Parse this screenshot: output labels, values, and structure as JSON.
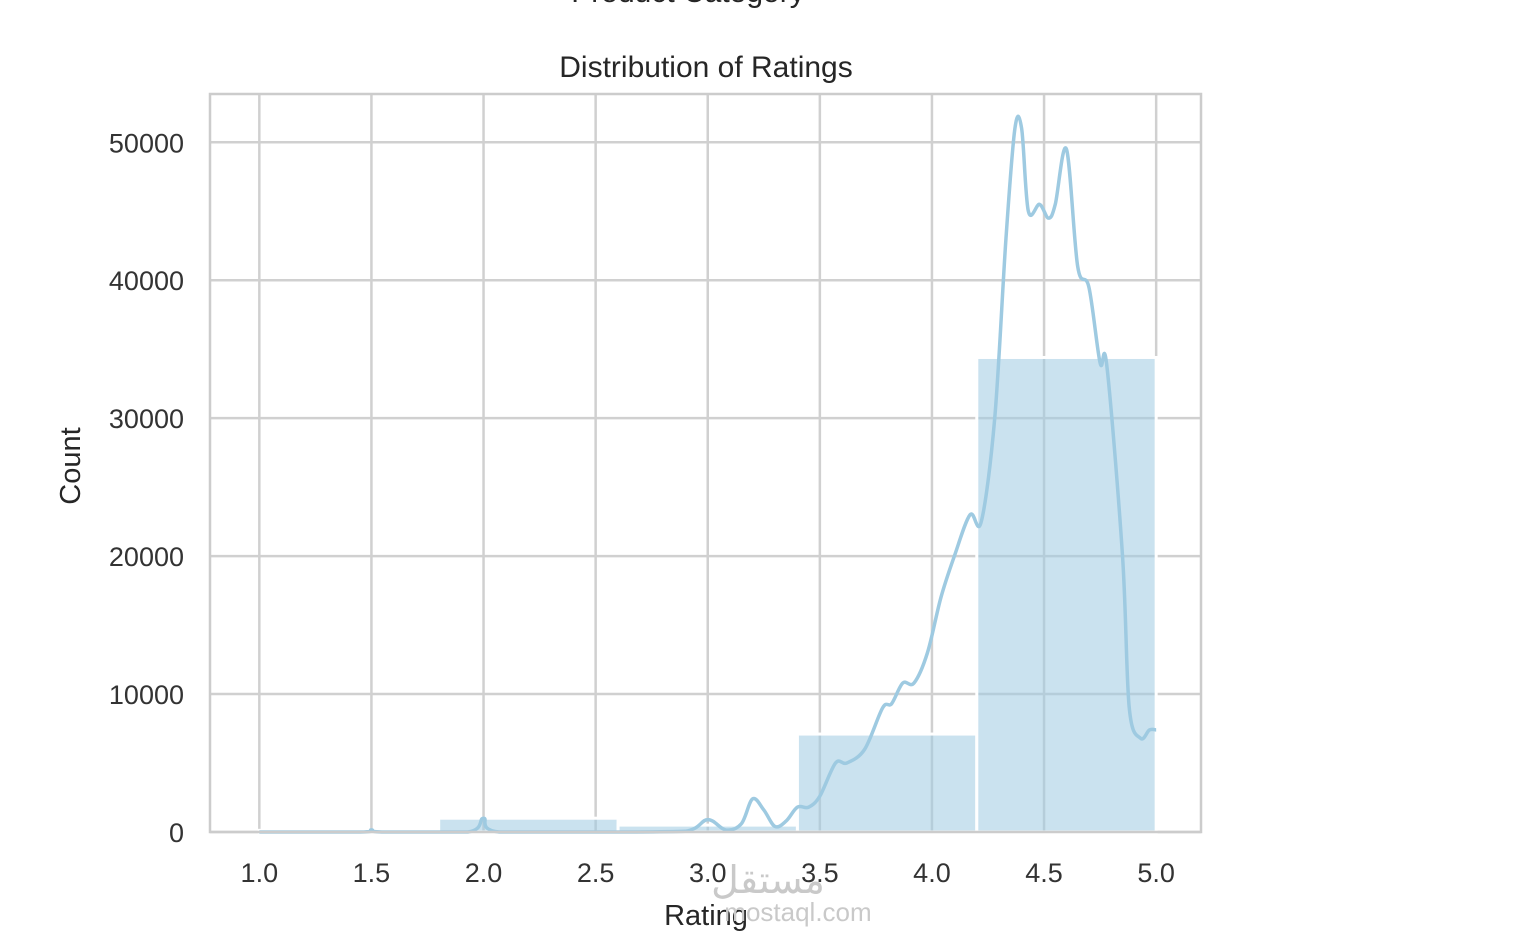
{
  "top_clipped_text": "Product Category",
  "watermark": {
    "arabic": "مستقل",
    "latin": "mostaql.com"
  },
  "chart_data": {
    "type": "bar",
    "title": "Distribution of Ratings",
    "xlabel": "Rating",
    "ylabel": "Count",
    "xlim": [
      0.78,
      5.2
    ],
    "ylim": [
      0,
      53500
    ],
    "grid": true,
    "xticks": [
      "1.0",
      "1.5",
      "2.0",
      "2.5",
      "3.0",
      "3.5",
      "4.0",
      "4.5",
      "5.0"
    ],
    "yticks": [
      "0",
      "10000",
      "20000",
      "30000",
      "40000",
      "50000"
    ],
    "bar_color": "#9ecae1",
    "bins": [
      {
        "x0": 1.0,
        "x1": 1.8,
        "count": 120
      },
      {
        "x0": 1.8,
        "x1": 2.6,
        "count": 1000
      },
      {
        "x0": 2.6,
        "x1": 3.4,
        "count": 500
      },
      {
        "x0": 3.4,
        "x1": 4.2,
        "count": 7100
      },
      {
        "x0": 4.2,
        "x1": 5.0,
        "count": 34400
      }
    ],
    "kde": {
      "name": "",
      "color": "#9ecae1",
      "points": [
        [
          1.0,
          0
        ],
        [
          1.45,
          0
        ],
        [
          1.5,
          150
        ],
        [
          1.55,
          0
        ],
        [
          1.93,
          0
        ],
        [
          2.0,
          1000
        ],
        [
          2.07,
          0
        ],
        [
          2.6,
          0
        ],
        [
          2.9,
          50
        ],
        [
          3.0,
          900
        ],
        [
          3.08,
          150
        ],
        [
          3.15,
          600
        ],
        [
          3.2,
          2400
        ],
        [
          3.25,
          1600
        ],
        [
          3.3,
          400
        ],
        [
          3.35,
          800
        ],
        [
          3.4,
          1800
        ],
        [
          3.45,
          1800
        ],
        [
          3.5,
          2600
        ],
        [
          3.57,
          5000
        ],
        [
          3.62,
          5000
        ],
        [
          3.7,
          6000
        ],
        [
          3.78,
          9000
        ],
        [
          3.82,
          9300
        ],
        [
          3.87,
          10800
        ],
        [
          3.92,
          10800
        ],
        [
          3.98,
          13000
        ],
        [
          4.04,
          17000
        ],
        [
          4.1,
          20000
        ],
        [
          4.17,
          23000
        ],
        [
          4.22,
          22500
        ],
        [
          4.28,
          30000
        ],
        [
          4.33,
          43000
        ],
        [
          4.37,
          51000
        ],
        [
          4.4,
          51000
        ],
        [
          4.43,
          45000
        ],
        [
          4.48,
          45500
        ],
        [
          4.52,
          44500
        ],
        [
          4.55,
          45500
        ],
        [
          4.6,
          49500
        ],
        [
          4.65,
          41000
        ],
        [
          4.7,
          39500
        ],
        [
          4.75,
          34000
        ],
        [
          4.78,
          33800
        ],
        [
          4.85,
          20000
        ],
        [
          4.88,
          9000
        ],
        [
          4.93,
          6800
        ],
        [
          4.97,
          7400
        ],
        [
          5.0,
          7400
        ]
      ]
    }
  }
}
